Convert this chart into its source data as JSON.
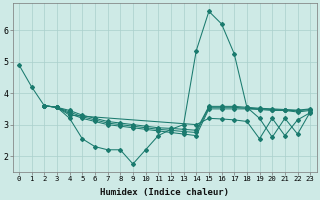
{
  "xlabel": "Humidex (Indice chaleur)",
  "bg_color": "#ceeae6",
  "grid_color": "#aacfcc",
  "line_color": "#1a7a6e",
  "xlim": [
    -0.5,
    23.5
  ],
  "ylim": [
    1.5,
    6.85
  ],
  "xtick_labels": [
    "0",
    "1",
    "2",
    "3",
    "4",
    "5",
    "6",
    "7",
    "8",
    "9",
    "10",
    "11",
    "12",
    "13",
    "14",
    "15",
    "16",
    "17",
    "18",
    "19",
    "20",
    "21",
    "22",
    "23"
  ],
  "ytick_values": [
    2,
    3,
    4,
    5,
    6
  ],
  "lines": [
    {
      "x": [
        0,
        1,
        2,
        3,
        4,
        5,
        6,
        7,
        8,
        9,
        10,
        11,
        12,
        13,
        14,
        15,
        16,
        17,
        18,
        19,
        20,
        21,
        22,
        23
      ],
      "y": [
        4.9,
        4.2,
        3.6,
        3.55,
        3.2,
        2.55,
        2.3,
        2.2,
        2.2,
        1.75,
        2.2,
        2.65,
        2.85,
        3.0,
        5.35,
        6.6,
        6.2,
        5.25,
        3.55,
        3.2,
        2.6,
        3.2,
        2.7,
        3.4
      ]
    },
    {
      "x": [
        2,
        3,
        4,
        5,
        6,
        7,
        8,
        9,
        10,
        11,
        12,
        13,
        14,
        15,
        16,
        17,
        18,
        19,
        20,
        21,
        22,
        23
      ],
      "y": [
        3.6,
        3.55,
        3.35,
        3.2,
        3.1,
        3.0,
        2.95,
        2.9,
        2.85,
        2.8,
        2.75,
        2.7,
        2.65,
        3.5,
        3.5,
        3.5,
        3.5,
        3.48,
        3.45,
        3.45,
        3.4,
        3.45
      ]
    },
    {
      "x": [
        2,
        3,
        4,
        5,
        6,
        7,
        8,
        9,
        10,
        11,
        12,
        13,
        14,
        15,
        16,
        17,
        18,
        19,
        20,
        21,
        22,
        23
      ],
      "y": [
        3.6,
        3.55,
        3.4,
        3.25,
        3.15,
        3.05,
        3.0,
        2.95,
        2.9,
        2.85,
        2.82,
        2.78,
        2.75,
        3.55,
        3.55,
        3.55,
        3.52,
        3.5,
        3.48,
        3.46,
        3.44,
        3.48
      ]
    },
    {
      "x": [
        2,
        3,
        4,
        5,
        6,
        7,
        8,
        9,
        10,
        11,
        12,
        13,
        14,
        15,
        16,
        17,
        18,
        19,
        20,
        21,
        22,
        23
      ],
      "y": [
        3.6,
        3.55,
        3.45,
        3.3,
        3.2,
        3.1,
        3.05,
        3.0,
        2.95,
        2.9,
        2.88,
        2.85,
        2.82,
        3.58,
        3.58,
        3.58,
        3.55,
        3.52,
        3.5,
        3.48,
        3.46,
        3.5
      ]
    },
    {
      "x": [
        2,
        3,
        4,
        14,
        15,
        16,
        17,
        18,
        19,
        20,
        21,
        22,
        23
      ],
      "y": [
        3.6,
        3.55,
        3.3,
        3.0,
        3.2,
        3.18,
        3.15,
        3.1,
        2.55,
        3.2,
        2.65,
        3.15,
        3.38
      ]
    }
  ]
}
